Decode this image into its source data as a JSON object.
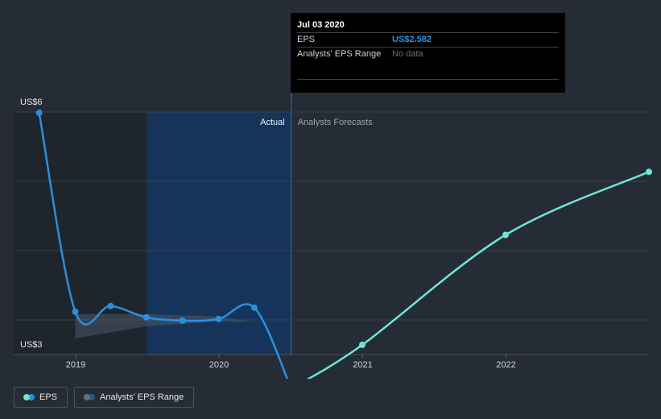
{
  "tooltip": {
    "date": "Jul 03 2020",
    "rows": [
      {
        "label": "EPS",
        "value": "US$2.582"
      },
      {
        "label": "Analysts' EPS Range",
        "value": "No data"
      }
    ]
  },
  "legend": [
    {
      "label": "EPS"
    },
    {
      "label": "Analysts' EPS Range"
    }
  ],
  "colors": {
    "background": "#252c36",
    "actual_line": "#2b8fe0",
    "forecast_line": "#6fe5d5",
    "actual_band": "#16345a",
    "range_band": "#4b5a6a"
  },
  "chart_data": {
    "type": "line",
    "y_tick_labels": [
      "US$6",
      "US$3"
    ],
    "ylim": [
      3,
      6
    ],
    "x_tick_labels": [
      "2019",
      "2020",
      "2021",
      "2022"
    ],
    "regions": {
      "actual": "Actual",
      "forecast": "Analysts Forecasts"
    },
    "series": [
      {
        "name": "EPS",
        "x": [
          "2018-09-30",
          "2018-12-31",
          "2019-03-31",
          "2019-06-30",
          "2019-09-30",
          "2019-12-31",
          "2020-03-31",
          "2020-07-03"
        ],
        "values": [
          5.99,
          3.53,
          3.6,
          3.46,
          3.42,
          3.44,
          3.58,
          2.58
        ]
      },
      {
        "name": "EPS Forecast",
        "x": [
          "2020-07-03",
          "2020-12-31",
          "2021-12-31",
          "2022-12-31"
        ],
        "values": [
          2.58,
          3.12,
          4.48,
          5.26
        ]
      }
    ],
    "range_band": {
      "x": [
        "2018-12-31",
        "2019-06-30",
        "2019-12-31",
        "2020-03-31"
      ],
      "upper": [
        3.5,
        3.5,
        3.47,
        3.4
      ],
      "lower": [
        3.2,
        3.35,
        3.41,
        3.4
      ]
    },
    "grid": true
  }
}
